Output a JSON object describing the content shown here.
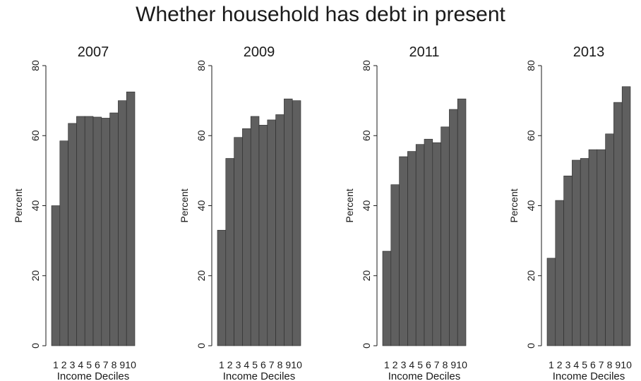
{
  "title": "Whether household has debt in present",
  "colors": {
    "bar": "#5f5f5f",
    "bar_edge": "#2a2a2a",
    "text": "#1a1a1a"
  },
  "chart_data": [
    {
      "type": "bar",
      "title": "2007",
      "xlabel": "Income Deciles",
      "ylabel": "Percent",
      "categories": [
        "1",
        "2",
        "3",
        "4",
        "5",
        "6",
        "7",
        "8",
        "9",
        "10"
      ],
      "values": [
        40.0,
        58.5,
        63.5,
        65.5,
        65.5,
        65.3,
        65.0,
        66.5,
        70.0,
        72.5
      ],
      "ylim": [
        0,
        80
      ],
      "yticks": [
        0,
        20,
        40,
        60,
        80
      ],
      "grid": false
    },
    {
      "type": "bar",
      "title": "2009",
      "xlabel": "Income Deciles",
      "ylabel": "Percent",
      "categories": [
        "1",
        "2",
        "3",
        "4",
        "5",
        "6",
        "7",
        "8",
        "9",
        "10"
      ],
      "values": [
        33.0,
        53.5,
        59.5,
        62.0,
        65.5,
        63.0,
        64.5,
        66.0,
        70.5,
        70.0
      ],
      "ylim": [
        0,
        80
      ],
      "yticks": [
        0,
        20,
        40,
        60,
        80
      ],
      "grid": false
    },
    {
      "type": "bar",
      "title": "2011",
      "xlabel": "Income Deciles",
      "ylabel": "Percent",
      "categories": [
        "1",
        "2",
        "3",
        "4",
        "5",
        "6",
        "7",
        "8",
        "9",
        "10"
      ],
      "values": [
        27.0,
        46.0,
        54.0,
        55.5,
        57.5,
        59.0,
        58.0,
        62.5,
        67.5,
        70.5
      ],
      "ylim": [
        0,
        80
      ],
      "yticks": [
        0,
        20,
        40,
        60,
        80
      ],
      "grid": false
    },
    {
      "type": "bar",
      "title": "2013",
      "xlabel": "Income Deciles",
      "ylabel": "Percent",
      "categories": [
        "1",
        "2",
        "3",
        "4",
        "5",
        "6",
        "7",
        "8",
        "9",
        "10"
      ],
      "values": [
        25.0,
        41.5,
        48.5,
        53.0,
        53.5,
        56.0,
        56.0,
        60.5,
        69.5,
        74.0
      ],
      "ylim": [
        0,
        80
      ],
      "yticks": [
        0,
        20,
        40,
        60,
        80
      ],
      "grid": false
    }
  ]
}
